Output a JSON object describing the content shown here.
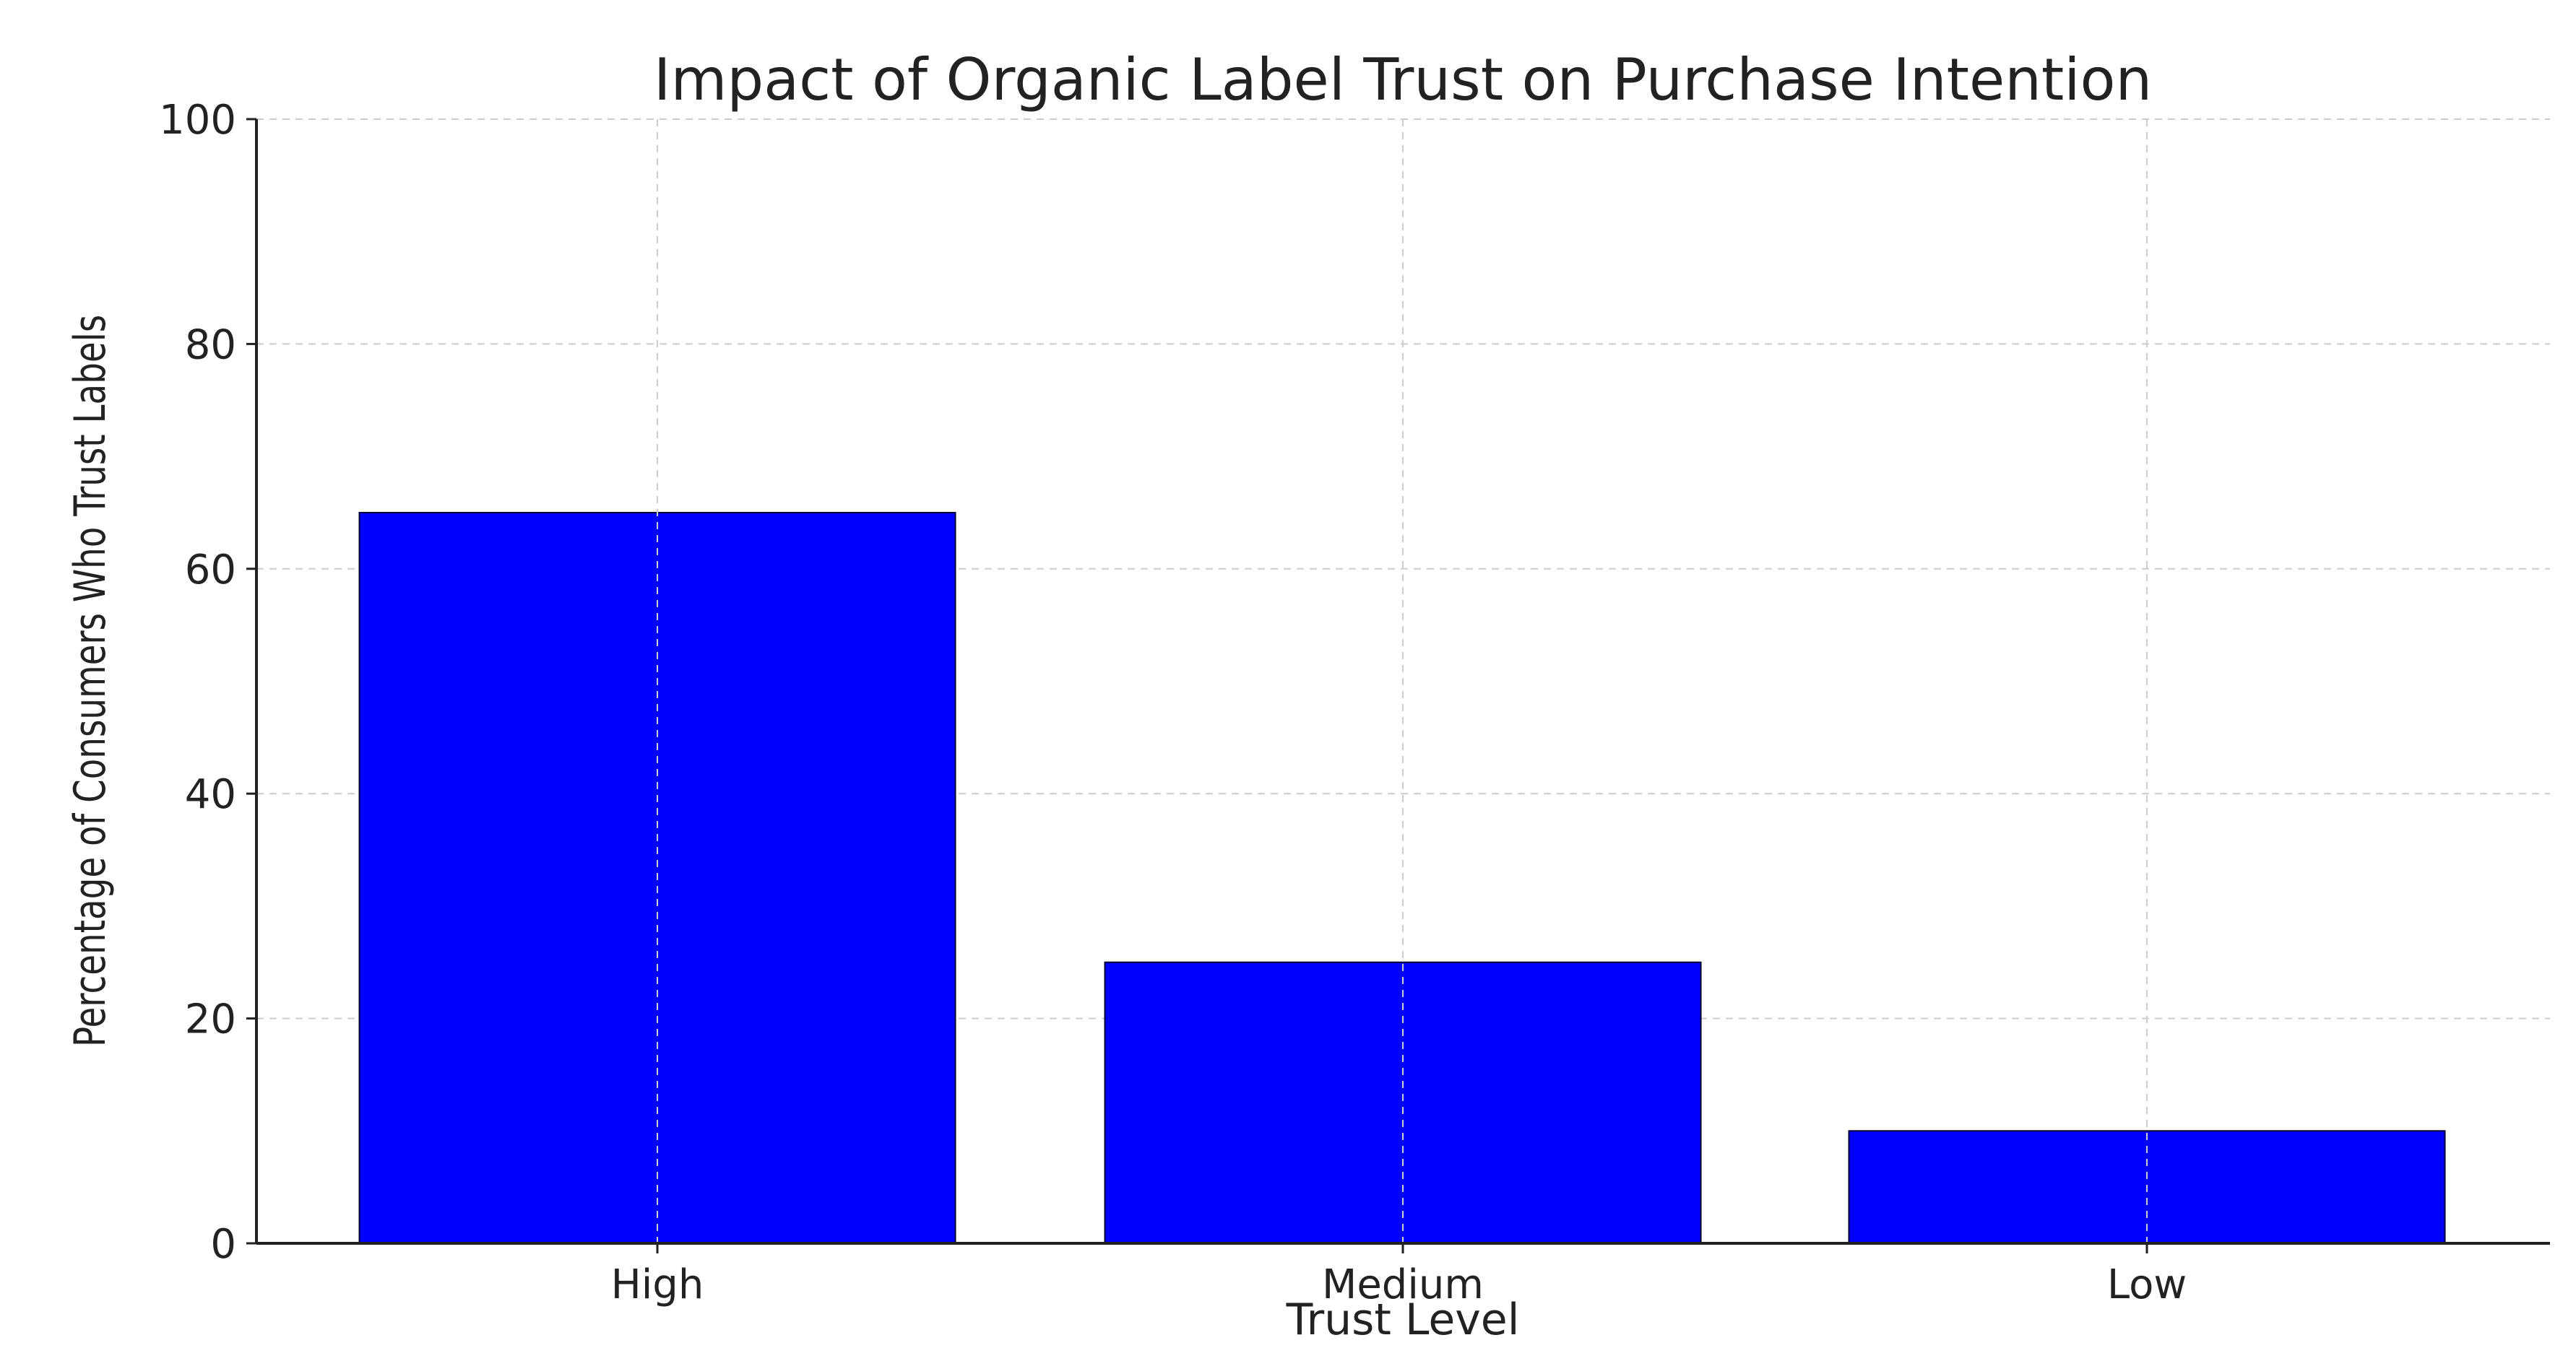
{
  "chart_data": {
    "type": "bar",
    "title": "Impact of Organic Label Trust on Purchase Intention",
    "xlabel": "Trust Level",
    "ylabel": "Percentage of Consumers Who Trust Labels",
    "categories": [
      "High",
      "Medium",
      "Low"
    ],
    "values": [
      65,
      25,
      10
    ],
    "ylim": [
      0,
      100
    ],
    "yticks": [
      "0",
      "20",
      "40",
      "60",
      "80",
      "100"
    ],
    "bar_color": "#0000ff",
    "grid": true,
    "legend": "none"
  }
}
